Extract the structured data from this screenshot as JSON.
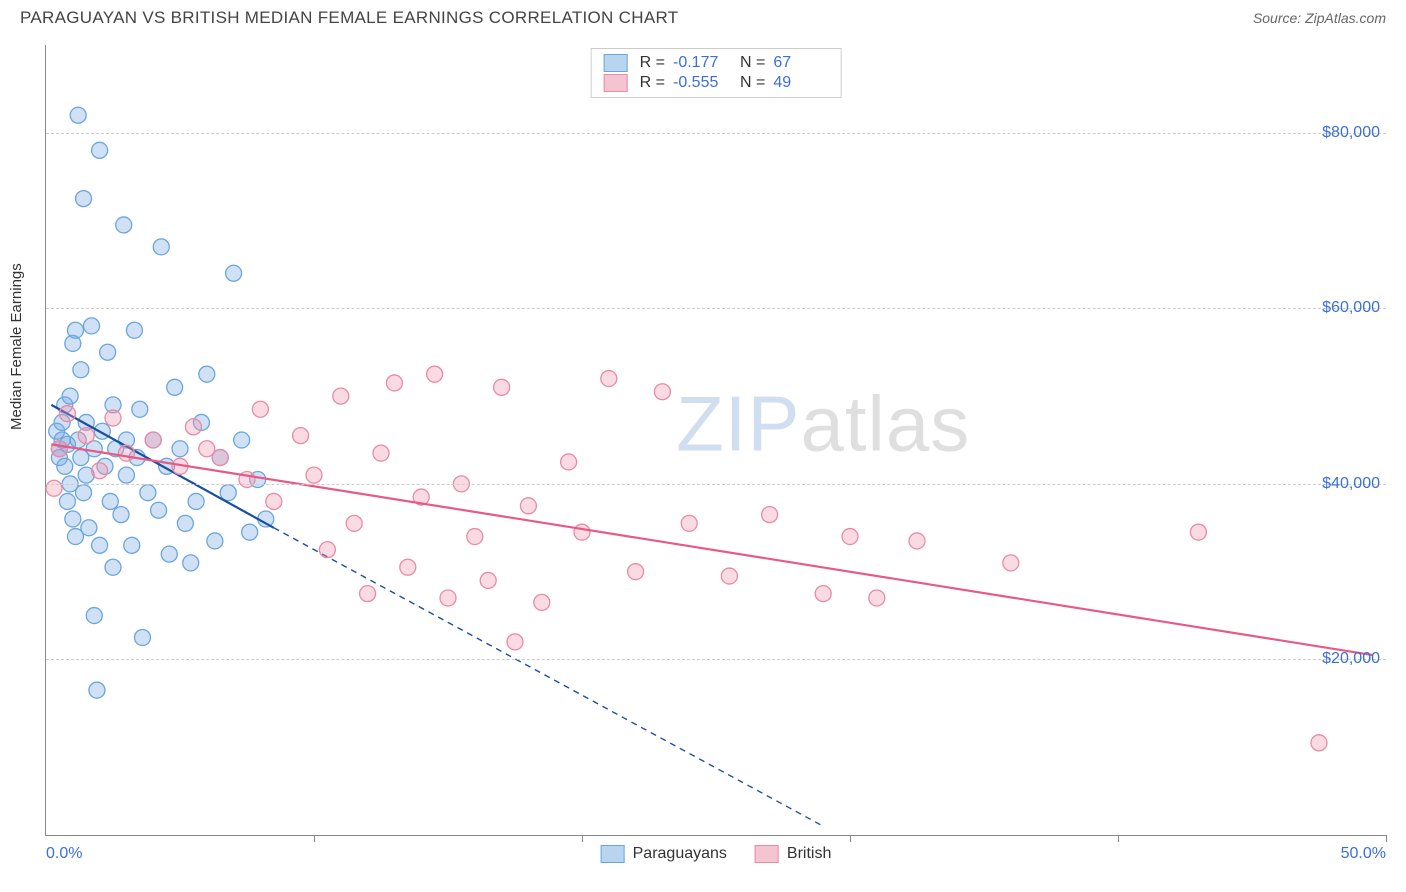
{
  "header": {
    "title": "PARAGUAYAN VS BRITISH MEDIAN FEMALE EARNINGS CORRELATION CHART",
    "source": "Source: ZipAtlas.com"
  },
  "chart": {
    "type": "scatter",
    "ylabel": "Median Female Earnings",
    "x_domain": [
      0,
      50
    ],
    "y_domain": [
      0,
      90000
    ],
    "x_ticks": [
      0,
      10,
      20,
      30,
      40,
      50
    ],
    "x_tick_labels_shown": {
      "0": "0.0%",
      "50": "50.0%"
    },
    "y_gridlines": [
      20000,
      40000,
      60000,
      80000
    ],
    "y_tick_labels": {
      "20000": "$20,000",
      "40000": "$40,000",
      "60000": "$60,000",
      "80000": "$80,000"
    },
    "grid_color": "#cccccc",
    "axis_color": "#888888",
    "background_color": "#ffffff",
    "tick_label_color": "#3b6fd6",
    "marker_radius": 8,
    "marker_stroke_width": 1.3,
    "line_width": 2.2,
    "dash_pattern": "6 5",
    "watermark": {
      "text_a": "ZIP",
      "text_b": "atlas",
      "color_a": "rgba(120,160,210,0.35)",
      "color_b": "rgba(150,150,150,0.3)"
    },
    "series": [
      {
        "name": "Paraguayans",
        "fill": "rgba(120,170,225,0.35)",
        "stroke": "#6aa6de",
        "swatch_fill": "#b9d4ef",
        "swatch_stroke": "#6aa6de",
        "trend_color": "#1a4fa0",
        "R": "-0.177",
        "N": "67",
        "trend": {
          "x1": 0.2,
          "y1": 49000,
          "x2": 8.5,
          "y2": 35000
        },
        "trend_ext": {
          "x1": 8.5,
          "y1": 35000,
          "x2": 29,
          "y2": 1000
        },
        "points": [
          [
            0.4,
            46000
          ],
          [
            0.5,
            44000
          ],
          [
            0.5,
            43000
          ],
          [
            0.6,
            47000
          ],
          [
            0.6,
            45000
          ],
          [
            0.7,
            49000
          ],
          [
            0.7,
            42000
          ],
          [
            0.8,
            44500
          ],
          [
            0.8,
            38000
          ],
          [
            0.9,
            50000
          ],
          [
            0.9,
            40000
          ],
          [
            1.0,
            56000
          ],
          [
            1.0,
            36000
          ],
          [
            1.1,
            57500
          ],
          [
            1.1,
            34000
          ],
          [
            1.2,
            82000
          ],
          [
            1.2,
            45000
          ],
          [
            1.3,
            43000
          ],
          [
            1.3,
            53000
          ],
          [
            1.4,
            39000
          ],
          [
            1.4,
            72500
          ],
          [
            1.5,
            41000
          ],
          [
            1.5,
            47000
          ],
          [
            1.6,
            35000
          ],
          [
            1.7,
            58000
          ],
          [
            1.8,
            44000
          ],
          [
            1.8,
            25000
          ],
          [
            1.9,
            16500
          ],
          [
            2.0,
            78000
          ],
          [
            2.0,
            33000
          ],
          [
            2.1,
            46000
          ],
          [
            2.2,
            42000
          ],
          [
            2.3,
            55000
          ],
          [
            2.4,
            38000
          ],
          [
            2.5,
            49000
          ],
          [
            2.5,
            30500
          ],
          [
            2.6,
            44000
          ],
          [
            2.8,
            36500
          ],
          [
            2.9,
            69500
          ],
          [
            3.0,
            45000
          ],
          [
            3.0,
            41000
          ],
          [
            3.2,
            33000
          ],
          [
            3.3,
            57500
          ],
          [
            3.4,
            43000
          ],
          [
            3.5,
            48500
          ],
          [
            3.6,
            22500
          ],
          [
            3.8,
            39000
          ],
          [
            4.0,
            45000
          ],
          [
            4.2,
            37000
          ],
          [
            4.3,
            67000
          ],
          [
            4.5,
            42000
          ],
          [
            4.6,
            32000
          ],
          [
            4.8,
            51000
          ],
          [
            5.0,
            44000
          ],
          [
            5.2,
            35500
          ],
          [
            5.4,
            31000
          ],
          [
            5.6,
            38000
          ],
          [
            5.8,
            47000
          ],
          [
            6.0,
            52500
          ],
          [
            6.3,
            33500
          ],
          [
            6.5,
            43000
          ],
          [
            6.8,
            39000
          ],
          [
            7.0,
            64000
          ],
          [
            7.3,
            45000
          ],
          [
            7.6,
            34500
          ],
          [
            7.9,
            40500
          ],
          [
            8.2,
            36000
          ]
        ]
      },
      {
        "name": "British",
        "fill": "rgba(240,150,175,0.35)",
        "stroke": "#e88ba5",
        "swatch_fill": "#f5c4d1",
        "swatch_stroke": "#e88ba5",
        "trend_color": "#e85a85",
        "R": "-0.555",
        "N": "49",
        "trend": {
          "x1": 0.2,
          "y1": 44500,
          "x2": 49.5,
          "y2": 20500
        },
        "trend_ext": null,
        "points": [
          [
            0.3,
            39500
          ],
          [
            0.5,
            44000
          ],
          [
            1.5,
            45500
          ],
          [
            2.5,
            47500
          ],
          [
            3.0,
            43500
          ],
          [
            4.0,
            45000
          ],
          [
            5.0,
            42000
          ],
          [
            5.5,
            46500
          ],
          [
            6.5,
            43000
          ],
          [
            7.5,
            40500
          ],
          [
            8.0,
            48500
          ],
          [
            8.5,
            38000
          ],
          [
            9.5,
            45500
          ],
          [
            10.0,
            41000
          ],
          [
            10.5,
            32500
          ],
          [
            11.0,
            50000
          ],
          [
            11.5,
            35500
          ],
          [
            12.0,
            27500
          ],
          [
            12.5,
            43500
          ],
          [
            13.0,
            51500
          ],
          [
            13.5,
            30500
          ],
          [
            14.0,
            38500
          ],
          [
            14.5,
            52500
          ],
          [
            15.0,
            27000
          ],
          [
            15.5,
            40000
          ],
          [
            16.0,
            34000
          ],
          [
            16.5,
            29000
          ],
          [
            17.0,
            51000
          ],
          [
            18.0,
            37500
          ],
          [
            18.5,
            26500
          ],
          [
            19.5,
            42500
          ],
          [
            20.0,
            34500
          ],
          [
            21.0,
            52000
          ],
          [
            22.0,
            30000
          ],
          [
            23.0,
            50500
          ],
          [
            24.0,
            35500
          ],
          [
            25.5,
            29500
          ],
          [
            27.0,
            36500
          ],
          [
            29.0,
            27500
          ],
          [
            30.0,
            34000
          ],
          [
            31.0,
            27000
          ],
          [
            32.5,
            33500
          ],
          [
            36.0,
            31000
          ],
          [
            43.0,
            34500
          ],
          [
            47.5,
            10500
          ],
          [
            0.8,
            48000
          ],
          [
            2.0,
            41500
          ],
          [
            6.0,
            44000
          ],
          [
            17.5,
            22000
          ]
        ]
      }
    ]
  },
  "legend_top": {
    "rows": [
      {
        "series_idx": 0,
        "R_label": "R =",
        "N_label": "N ="
      },
      {
        "series_idx": 1,
        "R_label": "R =",
        "N_label": "N ="
      }
    ]
  },
  "legend_bottom": {
    "items": [
      {
        "series_idx": 0
      },
      {
        "series_idx": 1
      }
    ]
  }
}
